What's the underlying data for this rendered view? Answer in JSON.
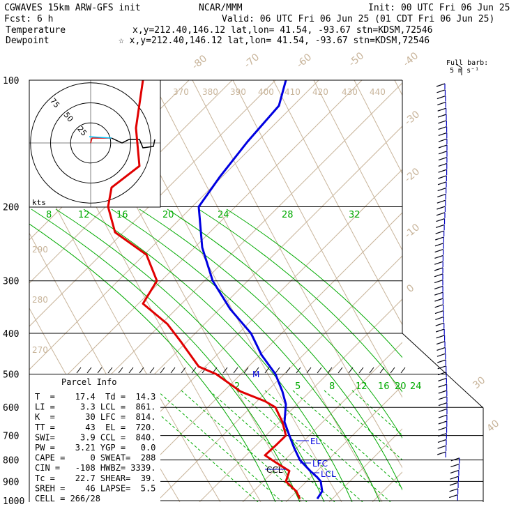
{
  "header": {
    "line1_left": "CGWAVES 15km ARW-GFS init",
    "line1_mid": "NCAR/MMM",
    "line1_right": "Init: 00 UTC Fri 06 Jun 25",
    "line2_left": "Fcst:    6 h",
    "line2_right": "Valid: 06 UTC Fri 06 Jun 25 (01 CDT Fri 06 Jun 25)",
    "temp_label": "Temperature",
    "temp_info": "x,y=212.40,146.12   lat,lon= 41.54, -93.67  stn=KDSM,72546",
    "dew_label": "Dewpoint",
    "dew_info": "☆ x,y=212.40,146.12   lat,lon= 41.54, -93.67  stn=KDSM,72546",
    "barb_legend_1": "Full barb:",
    "barb_legend_2": "5 m s⁻¹"
  },
  "colors": {
    "temperature": "#0000e0",
    "dewpoint": "#e00000",
    "isotherm": "#c8b49a",
    "theta_e": "#c8b49a",
    "mixing_ratio": "#00aa00",
    "hodo_line": "#00c8ff",
    "axis": "#000000"
  },
  "parcel_info": {
    "title": "Parcel Info",
    "lines": [
      "T  =    17.4  Td =  14.3",
      "LI =     3.3 LCL =  861.",
      "K  =      30 LFC =  814.",
      "TT =      43  EL =  720.",
      "SWI=     3.9 CCL =  840.",
      "PW =    3.21 YGP =   0.0",
      "CAPE =     0 SWEAT=  288",
      "CIN =   -108 HWBZ= 3339.",
      "Tc =    22.7 SHEAR=  39.",
      "SREH =    46 LAPSE=  5.5",
      "CELL = 266/28"
    ]
  },
  "hodograph": {
    "units_label": "kts",
    "ring_labels": [
      "75",
      "50",
      "25"
    ],
    "ring_values": [
      75,
      50,
      25
    ]
  },
  "chart_data": {
    "type": "line",
    "title": "",
    "pressure_levels": [
      100,
      200,
      300,
      400,
      500,
      600,
      700,
      800,
      900,
      1000
    ],
    "isotherm_labels": [
      "-80",
      "-70",
      "-60",
      "-50",
      "-40",
      "-30",
      "-20",
      "-10",
      "0",
      "30",
      "40"
    ],
    "theta_e_labels": [
      "370",
      "380",
      "390",
      "400",
      "410",
      "420",
      "430",
      "440",
      "290",
      "280",
      "270"
    ],
    "mixing_ratio_upper_labels": [
      "8",
      "12",
      "16",
      "20",
      "24",
      "28",
      "32"
    ],
    "mixing_ratio_lower_labels": [
      "2",
      "5",
      "8",
      "12",
      "16",
      "20",
      "24"
    ],
    "level_labels": [
      "EL",
      "LFC",
      "LCL",
      "CCL",
      "M"
    ],
    "series": [
      {
        "name": "Temperature",
        "points": [
          [
            100,
            410
          ],
          [
            115,
            400
          ],
          [
            140,
            355
          ],
          [
            170,
            315
          ],
          [
            200,
            285
          ],
          [
            250,
            290
          ],
          [
            300,
            305
          ],
          [
            350,
            330
          ],
          [
            400,
            360
          ],
          [
            450,
            375
          ],
          [
            500,
            395
          ],
          [
            550,
            405
          ],
          [
            590,
            410
          ],
          [
            650,
            408
          ],
          [
            700,
            415
          ],
          [
            750,
            422
          ],
          [
            800,
            430
          ],
          [
            850,
            445
          ],
          [
            880,
            455
          ],
          [
            900,
            460
          ],
          [
            950,
            462
          ],
          [
            990,
            455
          ]
        ]
      },
      {
        "name": "Dewpoint",
        "points": [
          [
            100,
            205
          ],
          [
            130,
            195
          ],
          [
            160,
            200
          ],
          [
            180,
            160
          ],
          [
            200,
            155
          ],
          [
            230,
            165
          ],
          [
            260,
            210
          ],
          [
            300,
            225
          ],
          [
            340,
            205
          ],
          [
            380,
            240
          ],
          [
            420,
            260
          ],
          [
            480,
            285
          ],
          [
            500,
            310
          ],
          [
            550,
            345
          ],
          [
            580,
            380
          ],
          [
            600,
            395
          ],
          [
            650,
            405
          ],
          [
            700,
            410
          ],
          [
            740,
            395
          ],
          [
            780,
            380
          ],
          [
            810,
            395
          ],
          [
            850,
            415
          ],
          [
            900,
            410
          ],
          [
            950,
            425
          ],
          [
            990,
            430
          ]
        ]
      }
    ]
  }
}
